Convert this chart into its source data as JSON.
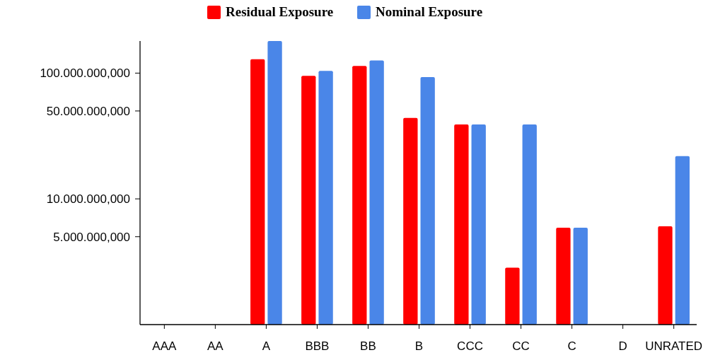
{
  "chart_data": {
    "type": "bar",
    "log": "y",
    "legend": "top",
    "grid": false,
    "categories": [
      "AAA",
      "AA",
      "A",
      "BBB",
      "BB",
      "B",
      "CCC",
      "CC",
      "C",
      "D",
      "UNRATED"
    ],
    "series": [
      {
        "name": "Residual Exposure",
        "color": "#ff0000",
        "values": [
          null,
          null,
          129000000,
          95000000,
          114000000,
          44000000,
          39000000,
          2840000,
          5900000,
          null,
          6050000
        ]
      },
      {
        "name": "Nominal Exposure",
        "color": "#4a86e8",
        "values": [
          null,
          null,
          180000000,
          104000000,
          126000000,
          93000000,
          39000000,
          39000000,
          5900000,
          null,
          21900000
        ]
      }
    ],
    "ylim": [
      1000000,
      180000000
    ],
    "yticks": [
      {
        "value": 5000000,
        "label": "5.000.000,000"
      },
      {
        "value": 10000000,
        "label": "10.000.000,000"
      },
      {
        "value": 50000000,
        "label": "50.000.000,000"
      },
      {
        "value": 100000000,
        "label": "100.000.000,000"
      }
    ]
  }
}
